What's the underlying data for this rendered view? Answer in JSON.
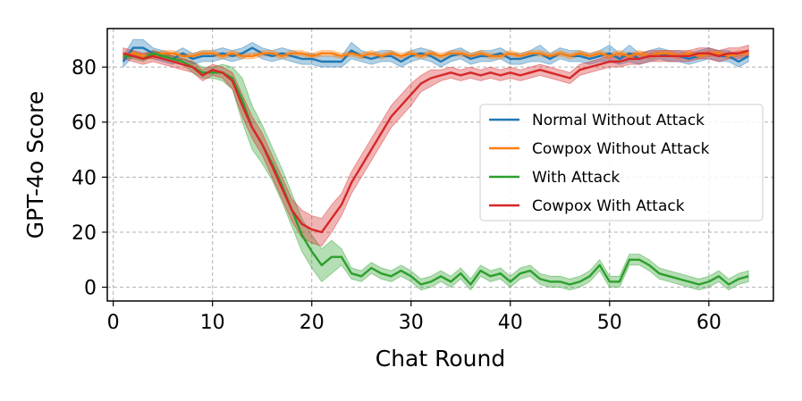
{
  "chart_data": {
    "type": "line",
    "xlabel": "Chat Round",
    "ylabel": "GPT-4o Score",
    "xlim": [
      -0.6,
      66.5
    ],
    "ylim": [
      -5,
      94
    ],
    "xticks": [
      0,
      10,
      20,
      30,
      40,
      50,
      60
    ],
    "yticks": [
      0,
      20,
      40,
      60,
      80
    ],
    "grid": true,
    "legend_position": "center-right",
    "x": [
      1,
      2,
      3,
      4,
      5,
      6,
      7,
      8,
      9,
      10,
      11,
      12,
      13,
      14,
      15,
      16,
      17,
      18,
      19,
      20,
      21,
      22,
      23,
      24,
      25,
      26,
      27,
      28,
      29,
      30,
      31,
      32,
      33,
      34,
      35,
      36,
      37,
      38,
      39,
      40,
      41,
      42,
      43,
      44,
      45,
      46,
      47,
      48,
      49,
      50,
      51,
      52,
      53,
      54,
      55,
      56,
      57,
      58,
      59,
      60,
      61,
      62,
      63,
      64
    ],
    "series": [
      {
        "name": "Normal Without Attack",
        "color": "#1f77b4",
        "values": [
          82,
          87,
          87,
          85,
          84,
          83,
          85,
          83,
          84,
          84,
          85,
          84,
          85,
          87,
          85,
          84,
          85,
          84,
          83,
          83,
          82,
          82,
          82,
          86,
          84,
          83,
          84,
          84,
          82,
          84,
          85,
          84,
          82,
          84,
          85,
          83,
          84,
          84,
          85,
          83,
          83,
          84,
          85,
          83,
          85,
          84,
          84,
          83,
          84,
          85,
          83,
          85,
          83,
          84,
          85,
          84,
          84,
          83,
          84,
          85,
          84,
          84,
          82,
          84
        ],
        "band": [
          2,
          3,
          3,
          2,
          2,
          2,
          2,
          2,
          2,
          2,
          2,
          2,
          2,
          2,
          2,
          2,
          2,
          2,
          2,
          2,
          2,
          2,
          2,
          3,
          2,
          2,
          2,
          2,
          2,
          2,
          2,
          2,
          2,
          2,
          2,
          2,
          2,
          2,
          2,
          2,
          2,
          2,
          3,
          2,
          2,
          2,
          2,
          2,
          2,
          3,
          2,
          3,
          2,
          2,
          2,
          2,
          2,
          2,
          2,
          2,
          2,
          2,
          2,
          2
        ]
      },
      {
        "name": "Cowpox Without Attack",
        "color": "#ff7f0e",
        "values": [
          84,
          85,
          84,
          84,
          85,
          85,
          84,
          84,
          85,
          85,
          84,
          85,
          84,
          84,
          85,
          85,
          84,
          85,
          85,
          84,
          85,
          85,
          84,
          85,
          84,
          85,
          84,
          85,
          84,
          85,
          84,
          85,
          84,
          85,
          85,
          84,
          85,
          84,
          84,
          85,
          84,
          85,
          85,
          84,
          85,
          84,
          85,
          84,
          85,
          84,
          85,
          84,
          85,
          84,
          85,
          85,
          84,
          85,
          84,
          85,
          85,
          84,
          85,
          85
        ],
        "band": [
          1,
          1,
          1,
          1,
          1,
          1,
          1,
          1,
          1,
          1,
          1,
          1,
          1,
          1,
          1,
          1,
          1,
          1,
          1,
          1,
          1,
          1,
          1,
          1,
          1,
          1,
          1,
          1,
          1,
          1,
          1,
          1,
          1,
          1,
          1,
          1,
          1,
          1,
          1,
          1,
          1,
          1,
          1,
          1,
          1,
          1,
          1,
          1,
          1,
          1,
          1,
          1,
          1,
          1,
          1,
          1,
          1,
          1,
          1,
          1,
          1,
          1,
          1,
          1
        ]
      },
      {
        "name": "With Attack",
        "color": "#2ca02c",
        "values": [
          84,
          84,
          83,
          85,
          84,
          83,
          82,
          80,
          78,
          78,
          78,
          76,
          68,
          58,
          52,
          45,
          37,
          28,
          19,
          13,
          8,
          11,
          11,
          5,
          4,
          7,
          5,
          4,
          6,
          4,
          1,
          2,
          4,
          2,
          5,
          1,
          6,
          4,
          5,
          2,
          5,
          6,
          3,
          2,
          2,
          1,
          2,
          4,
          8,
          2,
          2,
          10,
          10,
          8,
          5,
          4,
          3,
          2,
          1,
          2,
          4,
          1,
          3,
          4
        ],
        "band": [
          1,
          1,
          1,
          1,
          1,
          1,
          1,
          2,
          2,
          2,
          3,
          4,
          8,
          8,
          7,
          6,
          6,
          6,
          6,
          6,
          6,
          6,
          3,
          2,
          2,
          2,
          2,
          2,
          2,
          2,
          2,
          2,
          2,
          2,
          2,
          2,
          2,
          2,
          2,
          2,
          2,
          2,
          2,
          2,
          2,
          2,
          2,
          2,
          2,
          2,
          2,
          2,
          2,
          2,
          2,
          2,
          2,
          2,
          2,
          2,
          2,
          2,
          2,
          2
        ]
      },
      {
        "name": "Cowpox With Attack",
        "color": "#d62728",
        "values": [
          85,
          84,
          83,
          84,
          83,
          82,
          81,
          80,
          77,
          79,
          78,
          75,
          66,
          58,
          52,
          44,
          36,
          28,
          23,
          21,
          20,
          25,
          30,
          38,
          44,
          50,
          56,
          62,
          66,
          70,
          74,
          76,
          77,
          78,
          77,
          78,
          77,
          78,
          77,
          78,
          77,
          78,
          79,
          78,
          77,
          76,
          79,
          80,
          81,
          82,
          82,
          83,
          83,
          84,
          84,
          84,
          84,
          84,
          85,
          85,
          84,
          85,
          85,
          86
        ],
        "band": [
          2,
          2,
          2,
          2,
          2,
          2,
          2,
          2,
          2,
          2,
          2,
          3,
          4,
          4,
          4,
          4,
          4,
          4,
          5,
          5,
          5,
          5,
          4,
          4,
          4,
          4,
          4,
          4,
          4,
          4,
          3,
          3,
          2,
          2,
          2,
          2,
          2,
          2,
          2,
          2,
          2,
          2,
          2,
          2,
          2,
          2,
          2,
          2,
          2,
          2,
          2,
          2,
          2,
          2,
          2,
          2,
          2,
          2,
          2,
          2,
          2,
          2,
          2,
          2
        ]
      }
    ]
  }
}
